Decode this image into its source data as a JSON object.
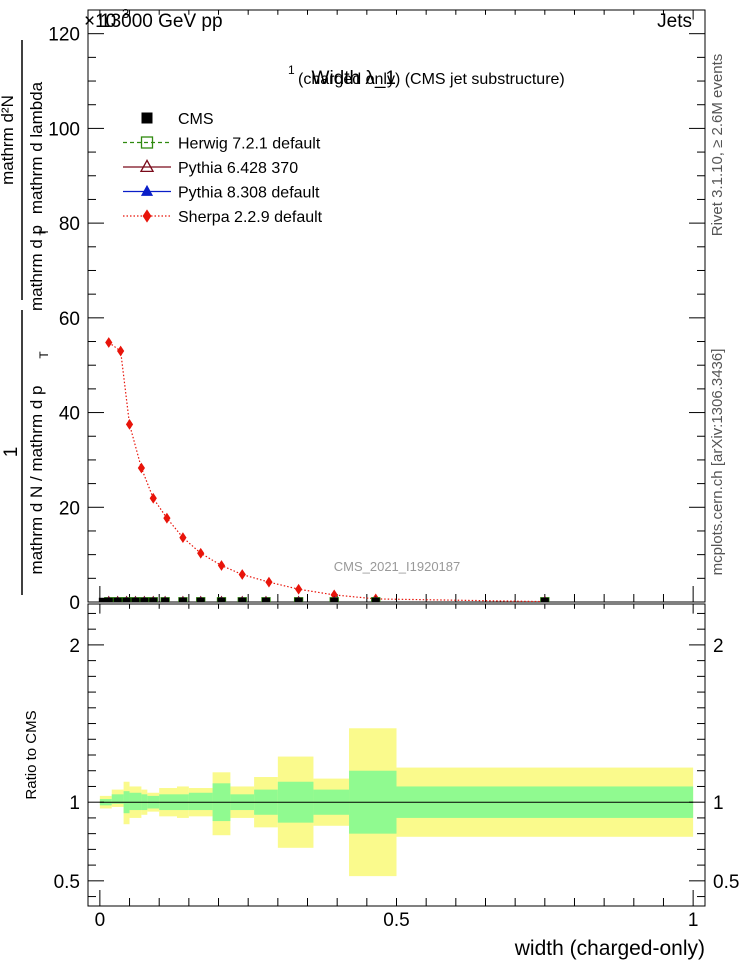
{
  "header": {
    "energy_label": "13000 GeV pp",
    "exponent_label": "×10",
    "exponent_value": "3",
    "process_label": "Jets"
  },
  "side_labels": {
    "rivet": "Rivet 3.1.10, ≥ 2.6M events",
    "mcplots": "mcplots.cern.ch [arXiv:1306.3436]"
  },
  "watermark": "CMS_2021_I1920187",
  "chart_data": [
    {
      "type": "line",
      "title_main": "Width λ_1",
      "title_sup": "1",
      "title_rest": "(charged only) (CMS jet substructure)",
      "ylabel_numerator": "1",
      "ylabel_denominator": "mathrm d N / mathrm d p",
      "ylabel_numerator_rhs": "mathrm d²N",
      "ylabel_denominator_rhs": "mathrm d p",
      "ylabel_tail": "mathrm d lambda",
      "ylabel_sub": "T",
      "ylim": [
        0,
        125
      ],
      "xlim": [
        -0.02,
        1.02
      ],
      "yticks": [
        0,
        20,
        40,
        60,
        80,
        100,
        120
      ],
      "ytick_labels": [
        "0",
        "20",
        "40",
        "60",
        "80",
        "100",
        "120"
      ],
      "legend_position": "top-left",
      "series": [
        {
          "name": "CMS",
          "color": "#000000",
          "marker": "square",
          "x": [
            0.005,
            0.015,
            0.03,
            0.045,
            0.06,
            0.075,
            0.09,
            0.11,
            0.14,
            0.17,
            0.205,
            0.24,
            0.28,
            0.335,
            0.395,
            0.465,
            0.75
          ],
          "y": [
            0.05,
            0.05,
            0.05,
            0.05,
            0.05,
            0.05,
            0.05,
            0.05,
            0.05,
            0.05,
            0.05,
            0.05,
            0.05,
            0.05,
            0.05,
            0.05,
            0.05
          ]
        },
        {
          "name": "Herwig 7.2.1 default",
          "color": "#2f8a0f",
          "marker": "open-square",
          "dash": "dashed",
          "x": [
            0.015,
            0.03,
            0.045,
            0.06,
            0.075,
            0.09,
            0.11,
            0.14,
            0.17,
            0.205,
            0.24,
            0.28,
            0.335,
            0.395,
            0.465,
            0.75
          ],
          "y": [
            0.05,
            0.05,
            0.05,
            0.05,
            0.05,
            0.05,
            0.05,
            0.05,
            0.05,
            0.05,
            0.05,
            0.05,
            0.05,
            0.05,
            0.05,
            0.05
          ]
        },
        {
          "name": "Pythia 6.428 370",
          "color": "#7a0a1a",
          "marker": "open-triangle",
          "dash": "solid",
          "x": [
            0.015,
            0.03,
            0.045,
            0.06,
            0.075,
            0.09,
            0.11,
            0.14,
            0.17,
            0.205,
            0.24,
            0.28,
            0.335,
            0.395,
            0.465,
            0.75
          ],
          "y": [
            0.05,
            0.05,
            0.05,
            0.05,
            0.05,
            0.05,
            0.05,
            0.05,
            0.05,
            0.05,
            0.05,
            0.05,
            0.05,
            0.05,
            0.05,
            0.05
          ]
        },
        {
          "name": "Pythia 8.308 default",
          "color": "#0a1ec8",
          "marker": "triangle",
          "dash": "solid",
          "x": [
            0.015,
            0.03,
            0.045,
            0.06,
            0.075,
            0.09,
            0.11,
            0.14,
            0.17,
            0.205,
            0.24,
            0.28,
            0.335,
            0.395,
            0.465,
            0.75
          ],
          "y": [
            0.05,
            0.05,
            0.05,
            0.05,
            0.05,
            0.05,
            0.05,
            0.05,
            0.05,
            0.05,
            0.05,
            0.05,
            0.05,
            0.05,
            0.05,
            0.05
          ]
        },
        {
          "name": "Sherpa 2.2.9 default",
          "color": "#e8140a",
          "marker": "diamond",
          "dash": "dotted",
          "x": [
            0.015,
            0.035,
            0.05,
            0.07,
            0.09,
            0.113,
            0.14,
            0.17,
            0.205,
            0.24,
            0.285,
            0.335,
            0.395,
            0.465,
            0.75
          ],
          "y": [
            54.8,
            53.0,
            37.5,
            28.3,
            21.9,
            17.7,
            13.6,
            10.3,
            7.7,
            5.8,
            4.2,
            2.7,
            1.5,
            0.65,
            0.08
          ]
        }
      ]
    },
    {
      "type": "area",
      "ylabel": "Ratio to CMS",
      "xlabel": "width (charged-only)",
      "ylim": [
        0.34,
        2.26
      ],
      "xlim": [
        -0.02,
        1.02
      ],
      "yticks": [
        0.5,
        1,
        2
      ],
      "ytick_labels": [
        "0.5",
        "1",
        "2"
      ],
      "xticks": [
        0,
        0.5,
        1
      ],
      "xtick_labels": [
        "0",
        "0.5",
        "1"
      ],
      "bins": [
        0,
        0.02,
        0.04,
        0.05,
        0.07,
        0.08,
        0.1,
        0.13,
        0.15,
        0.19,
        0.22,
        0.26,
        0.3,
        0.36,
        0.42,
        0.5,
        1.0
      ],
      "inner_band": {
        "color": "#90fa90",
        "low": [
          0.98,
          0.99,
          0.93,
          0.95,
          0.95,
          0.96,
          0.95,
          0.95,
          0.95,
          0.88,
          0.95,
          0.92,
          0.87,
          0.92,
          0.8,
          0.9
        ],
        "high": [
          1.02,
          1.05,
          1.07,
          1.06,
          1.05,
          1.04,
          1.05,
          1.05,
          1.06,
          1.12,
          1.05,
          1.08,
          1.13,
          1.08,
          1.2,
          1.1
        ]
      },
      "outer_band": {
        "color": "#fafa8c",
        "low": [
          0.96,
          0.97,
          0.86,
          0.9,
          0.92,
          0.94,
          0.91,
          0.9,
          0.91,
          0.79,
          0.9,
          0.84,
          0.71,
          0.85,
          0.53,
          0.78
        ],
        "high": [
          1.04,
          1.08,
          1.13,
          1.1,
          1.08,
          1.06,
          1.09,
          1.1,
          1.09,
          1.19,
          1.1,
          1.16,
          1.29,
          1.15,
          1.47,
          1.22
        ]
      },
      "reference_line": 1
    }
  ]
}
